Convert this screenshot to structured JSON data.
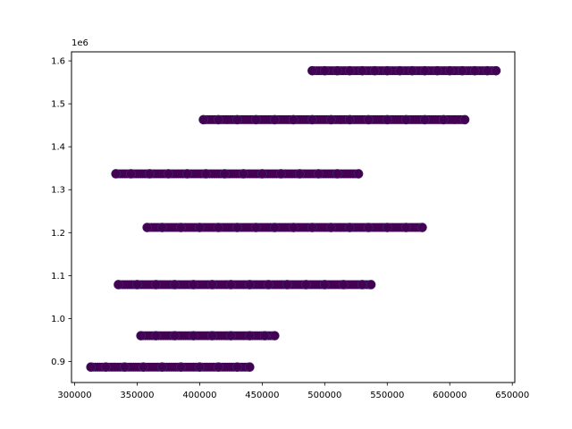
{
  "chart_data": {
    "type": "scatter",
    "title": "",
    "xlabel": "",
    "ylabel": "",
    "y_offset_label": "1e6",
    "xlim": [
      297500,
      652000
    ],
    "ylim": [
      851000,
      1621000
    ],
    "x_ticks": [
      300000,
      350000,
      400000,
      450000,
      500000,
      550000,
      600000,
      650000
    ],
    "x_tick_labels": [
      "300000",
      "350000",
      "400000",
      "450000",
      "500000",
      "550000",
      "600000",
      "650000"
    ],
    "y_ticks": [
      900000,
      1000000,
      1100000,
      1200000,
      1300000,
      1400000,
      1500000,
      1600000
    ],
    "y_tick_labels": [
      "0.9",
      "1.0",
      "1.1",
      "1.2",
      "1.3",
      "1.4",
      "1.5",
      "1.6"
    ],
    "grid": false,
    "colors": {
      "marker": "#440154",
      "marker_edge": "#3b2a6e",
      "axis": "#000000",
      "background": "#ffffff"
    },
    "series": [
      {
        "y": 1577000,
        "x": [
          490000,
          500000,
          510000,
          520000,
          530000,
          540000,
          550000,
          560000,
          570000,
          580000,
          590000,
          600000,
          610000,
          620000,
          630000,
          637000
        ]
      },
      {
        "y": 1463000,
        "x": [
          403000,
          415000,
          430000,
          445000,
          460000,
          475000,
          490000,
          505000,
          520000,
          535000,
          550000,
          565000,
          580000,
          595000,
          612000
        ]
      },
      {
        "y": 1337000,
        "x": [
          333000,
          345000,
          360000,
          375000,
          390000,
          405000,
          420000,
          435000,
          450000,
          465000,
          480000,
          495000,
          510000,
          527000
        ]
      },
      {
        "y": 1212000,
        "x": [
          358000,
          370000,
          385000,
          400000,
          415000,
          430000,
          445000,
          460000,
          475000,
          490000,
          505000,
          520000,
          535000,
          550000,
          565000,
          578000
        ]
      },
      {
        "y": 1079000,
        "x": [
          335000,
          350000,
          365000,
          380000,
          395000,
          410000,
          425000,
          440000,
          455000,
          470000,
          485000,
          500000,
          515000,
          530000,
          537000
        ]
      },
      {
        "y": 960000,
        "x": [
          353000,
          365000,
          380000,
          395000,
          410000,
          425000,
          440000,
          452000,
          460000
        ]
      },
      {
        "y": 887000,
        "x": [
          313000,
          325000,
          340000,
          355000,
          370000,
          385000,
          400000,
          415000,
          430000,
          440000
        ]
      }
    ]
  }
}
